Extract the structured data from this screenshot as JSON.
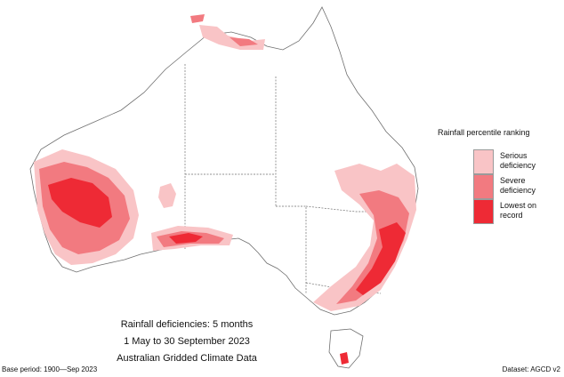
{
  "legend": {
    "title": "Rainfall percentile ranking",
    "items": [
      {
        "label": "Serious deficiency",
        "color": "#f9c4c6"
      },
      {
        "label": "Severe deficiency",
        "color": "#f27a80"
      },
      {
        "label": "Lowest on record",
        "color": "#ee2a35"
      }
    ]
  },
  "caption": {
    "line1": "Rainfall deficiencies: 5 months",
    "line2": "1 May to 30 September 2023",
    "line3": "Australian Gridded Climate Data"
  },
  "footer": {
    "base_period": "Base period: 1900—Sep 2023",
    "dataset": "Dataset: AGCD v2"
  },
  "colors": {
    "serious": "#f9c4c6",
    "severe": "#f27a80",
    "lowest": "#ee2a35",
    "boundary": "#7a7a7a"
  }
}
